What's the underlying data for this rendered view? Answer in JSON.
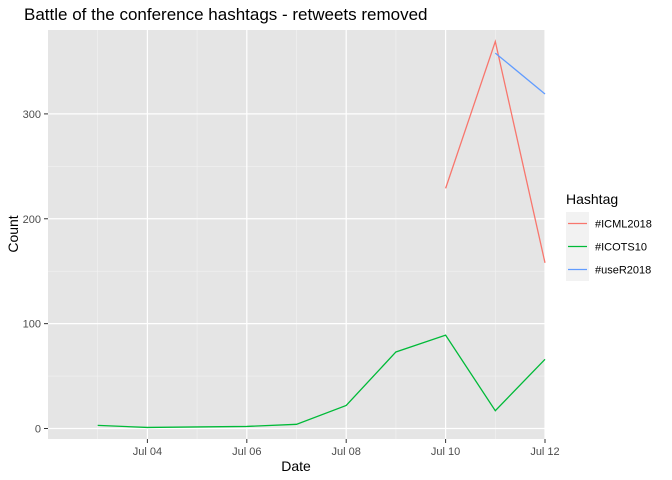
{
  "chart_data": {
    "type": "line",
    "title": "Battle of the conference hashtags - retweets removed",
    "xlabel": "Date",
    "ylabel": "Count",
    "x_ticks": [
      "Jul 04",
      "Jul 06",
      "Jul 08",
      "Jul 10",
      "Jul 12"
    ],
    "y_ticks": [
      "0",
      "100",
      "200",
      "300"
    ],
    "ylim": [
      -10,
      380
    ],
    "xlim": [
      "2018-07-02",
      "2018-07-12"
    ],
    "grid": true,
    "legend": {
      "title": "Hashtag",
      "placement": "right"
    },
    "series": [
      {
        "name": "#ICML2018",
        "color": "#F8766D",
        "x": [
          "2018-07-10",
          "2018-07-11",
          "2018-07-12"
        ],
        "y": [
          229,
          369,
          158
        ]
      },
      {
        "name": "#ICOTS10",
        "color": "#00BA38",
        "x": [
          "2018-07-03",
          "2018-07-04",
          "2018-07-05",
          "2018-07-06",
          "2018-07-07",
          "2018-07-08",
          "2018-07-09",
          "2018-07-10",
          "2018-07-11",
          "2018-07-12"
        ],
        "y": [
          3,
          1,
          1.5,
          2,
          4,
          22,
          73,
          89,
          17,
          66
        ]
      },
      {
        "name": "#useR2018",
        "color": "#619CFF",
        "x": [
          "2018-07-11",
          "2018-07-12"
        ],
        "y": [
          358,
          319
        ]
      }
    ]
  }
}
